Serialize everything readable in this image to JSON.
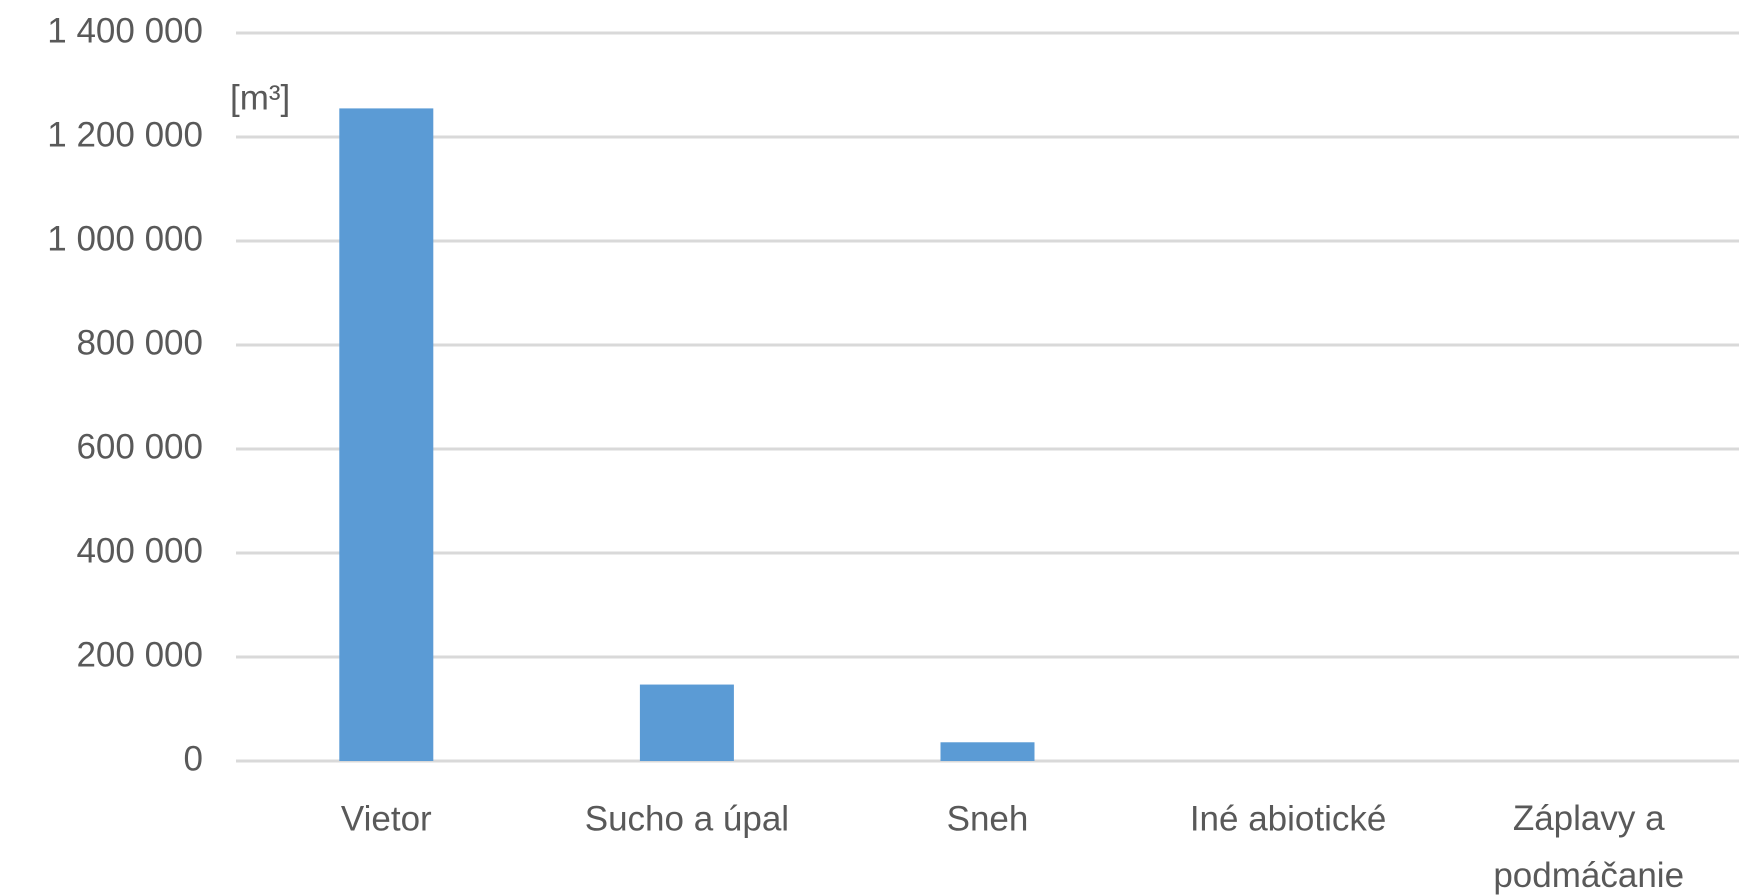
{
  "chart_data": {
    "type": "bar",
    "y_unit": "[m³]",
    "categories": [
      "Vietor",
      "Sucho a úpal",
      "Sneh",
      "Iné abiotické",
      "Záplavy a podmáčanie"
    ],
    "values": [
      1255000,
      147000,
      36000,
      0,
      0
    ],
    "color": "#5b9bd5",
    "ylim": [
      0,
      1400000
    ],
    "yticks": [
      0,
      {
        "value": 200000,
        "label": "200 000"
      },
      {
        "value": 400000,
        "label": "400 000"
      },
      {
        "value": 600000,
        "label": "600 000"
      },
      {
        "value": 800000,
        "label": "800 000"
      },
      {
        "value": 1000000,
        "label": "1 000 000"
      },
      {
        "value": 1200000,
        "label": "1 200 000"
      },
      {
        "value": 1400000,
        "label": "1 400 000"
      }
    ],
    "grid": true
  }
}
